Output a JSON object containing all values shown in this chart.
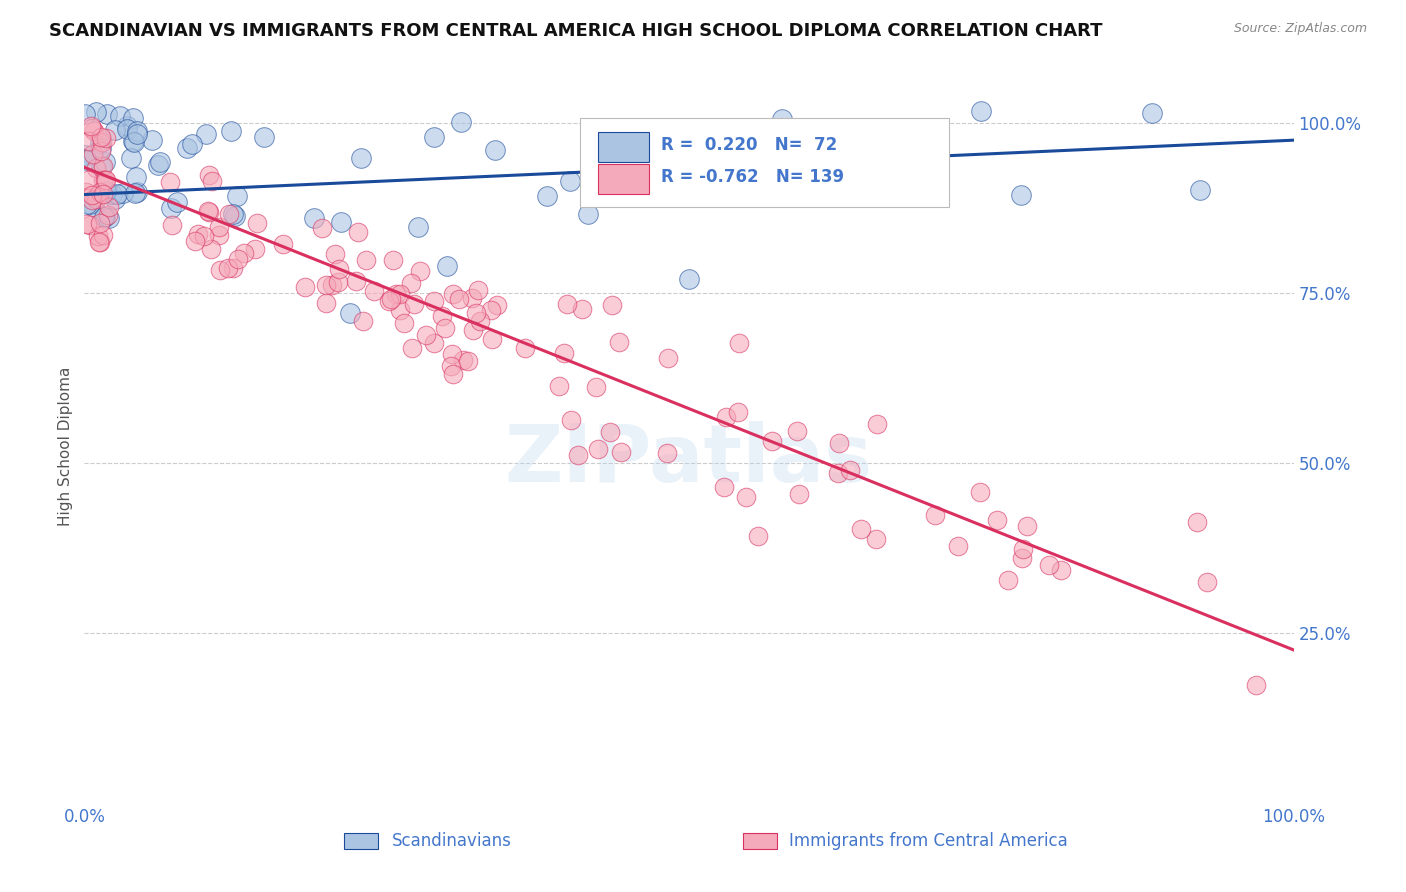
{
  "title": "SCANDINAVIAN VS IMMIGRANTS FROM CENTRAL AMERICA HIGH SCHOOL DIPLOMA CORRELATION CHART",
  "source": "Source: ZipAtlas.com",
  "ylabel": "High School Diploma",
  "xlim": [
    0.0,
    1.0
  ],
  "ylim": [
    0.0,
    1.05
  ],
  "blue_R": 0.22,
  "blue_N": 72,
  "pink_R": -0.762,
  "pink_N": 139,
  "blue_color": "#aac4e2",
  "pink_color": "#f5aabb",
  "blue_line_color": "#1a4a9a",
  "pink_line_color": "#d93060",
  "axis_label_color": "#4477cc",
  "title_color": "#111111",
  "bg_color": "#ffffff",
  "grid_color": "#cccccc",
  "watermark": "ZIPatlas",
  "ytick_positions_right": [
    1.0,
    0.75,
    0.5,
    0.25
  ],
  "ytick_labels_right": [
    "100.0%",
    "75.0%",
    "50.0%",
    "25.0%"
  ],
  "blue_trend_x": [
    0.0,
    1.0
  ],
  "blue_trend_y": [
    0.895,
    0.975
  ],
  "pink_trend_x": [
    0.0,
    1.0
  ],
  "pink_trend_y": [
    0.935,
    0.225
  ]
}
